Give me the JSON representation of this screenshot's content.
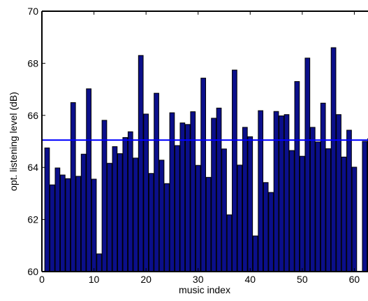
{
  "chart_data": {
    "type": "bar",
    "xlabel": "music index",
    "ylabel": "opt. listening level (dB)",
    "xlim": [
      0,
      63
    ],
    "ylim": [
      60,
      70
    ],
    "x_ticks": [
      0,
      10,
      20,
      30,
      40,
      50,
      60
    ],
    "y_ticks": [
      60,
      62,
      64,
      66,
      68,
      70
    ],
    "grid": false,
    "bar_color": "#0b0f8a",
    "bar_edge_color": "#000000",
    "mean_line": {
      "value": 65.05,
      "color": "#0000ff"
    },
    "x": [
      1,
      2,
      3,
      4,
      5,
      6,
      7,
      8,
      9,
      10,
      11,
      12,
      13,
      14,
      15,
      16,
      17,
      18,
      19,
      20,
      21,
      22,
      23,
      24,
      25,
      26,
      27,
      28,
      29,
      30,
      31,
      32,
      33,
      34,
      35,
      36,
      37,
      38,
      39,
      40,
      41,
      42,
      43,
      44,
      45,
      46,
      47,
      48,
      49,
      50,
      51,
      52,
      53,
      54,
      55,
      56,
      57,
      58,
      59,
      60,
      61,
      62,
      63
    ],
    "values": [
      64.75,
      63.33,
      63.98,
      63.71,
      63.57,
      66.49,
      63.66,
      64.51,
      67.02,
      63.55,
      60.68,
      65.81,
      64.16,
      64.8,
      64.53,
      65.15,
      65.37,
      64.36,
      68.3,
      66.05,
      63.77,
      66.85,
      64.28,
      63.38,
      66.1,
      64.84,
      65.71,
      65.65,
      66.14,
      64.08,
      67.43,
      63.62,
      65.89,
      66.28,
      64.71,
      62.18,
      67.74,
      64.09,
      65.54,
      65.18,
      61.37,
      66.18,
      63.42,
      63.04,
      66.15,
      65.98,
      66.03,
      64.65,
      67.3,
      64.43,
      68.2,
      65.54,
      64.98,
      66.47,
      64.72,
      68.6,
      66.03,
      64.4,
      65.43,
      64.01,
      60.0,
      65.0,
      65.1
    ]
  }
}
